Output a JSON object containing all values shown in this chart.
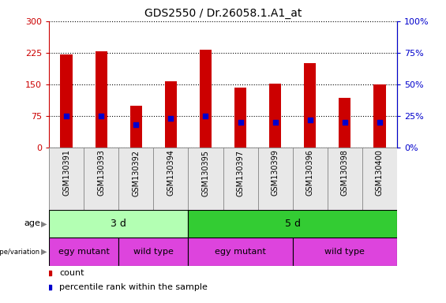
{
  "title": "GDS2550 / Dr.26058.1.A1_at",
  "samples": [
    "GSM130391",
    "GSM130393",
    "GSM130392",
    "GSM130394",
    "GSM130395",
    "GSM130397",
    "GSM130399",
    "GSM130396",
    "GSM130398",
    "GSM130400"
  ],
  "counts": [
    222,
    228,
    100,
    158,
    232,
    143,
    152,
    200,
    118,
    150
  ],
  "percentiles": [
    25,
    25,
    18,
    23,
    25,
    20,
    20,
    22,
    20,
    20
  ],
  "ylim_left": [
    0,
    300
  ],
  "ylim_right": [
    0,
    100
  ],
  "yticks_left": [
    0,
    75,
    150,
    225,
    300
  ],
  "yticks_right": [
    0,
    25,
    50,
    75,
    100
  ],
  "ytick_labels_left": [
    "0",
    "75",
    "150",
    "225",
    "300"
  ],
  "ytick_labels_right": [
    "0%",
    "25%",
    "50%",
    "75%",
    "100%"
  ],
  "bar_color": "#cc0000",
  "percentile_color": "#0000cc",
  "bar_width": 0.35,
  "age_groups": [
    {
      "label": "3 d",
      "start": 0,
      "end": 4,
      "color": "#b3ffb3"
    },
    {
      "label": "5 d",
      "start": 4,
      "end": 10,
      "color": "#33cc33"
    }
  ],
  "genotype_groups": [
    {
      "label": "egy mutant",
      "start": 0,
      "end": 2,
      "color": "#dd44dd"
    },
    {
      "label": "wild type",
      "start": 2,
      "end": 4,
      "color": "#dd44dd"
    },
    {
      "label": "egy mutant",
      "start": 4,
      "end": 7,
      "color": "#dd44dd"
    },
    {
      "label": "wild type",
      "start": 7,
      "end": 10,
      "color": "#dd44dd"
    }
  ],
  "legend_items": [
    {
      "label": "count",
      "color": "#cc0000"
    },
    {
      "label": "percentile rank within the sample",
      "color": "#0000cc"
    }
  ],
  "left_label_color": "#cc0000",
  "right_label_color": "#0000cc",
  "grid_linestyle": ":",
  "grid_linewidth": 0.8,
  "bg_color": "#e8e8e8",
  "age_light_color": "#b3ffb3",
  "age_dark_color": "#33cc33",
  "geno_color": "#dd44dd",
  "row_label_fontsize": 8,
  "tick_label_fontsize": 8,
  "sample_fontsize": 7,
  "bar_label_fontsize": 9
}
